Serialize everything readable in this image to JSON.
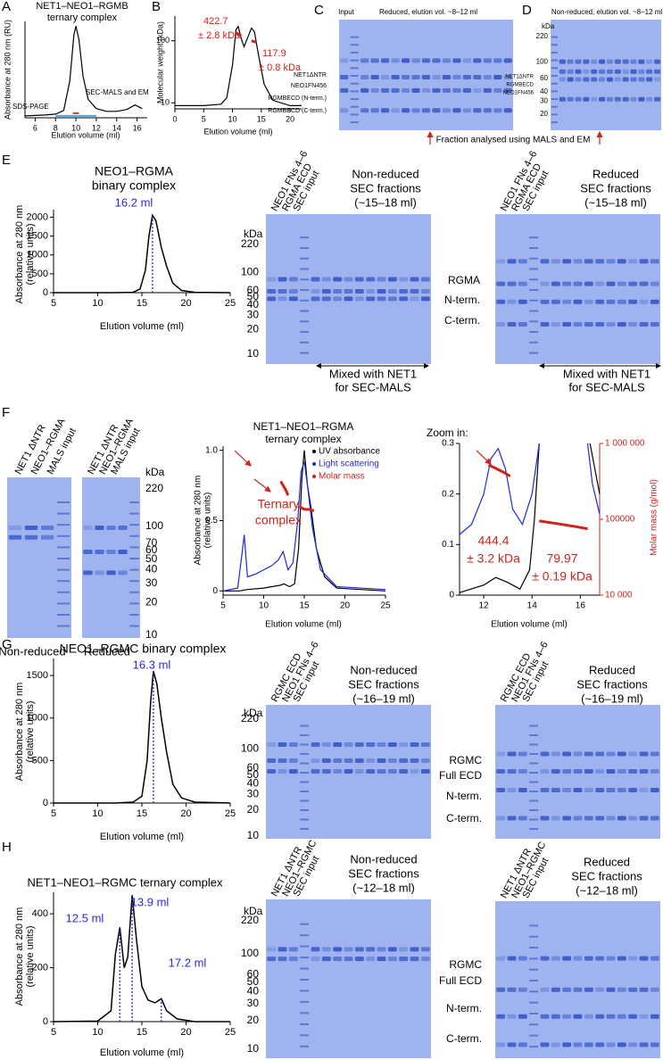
{
  "panel_labels": [
    "A",
    "B",
    "C",
    "D",
    "E",
    "F",
    "G",
    "H"
  ],
  "fraction_note": "Fraction analysed using MALS and EM",
  "chart_data": [
    {
      "type": "line",
      "title": [
        "NET1–NEO1–RGMB",
        "ternary complex"
      ],
      "xlabel": "Elution volume (ml)",
      "ylabel": [
        "Absorbance at 280 nm (RU)"
      ],
      "xlim": [
        5,
        17
      ],
      "ylim": [
        0,
        1.05
      ],
      "xticks": [
        6,
        8,
        10,
        12,
        14,
        16
      ],
      "series": [
        {
          "color": "#000000",
          "x": [
            5,
            7,
            8,
            8.8,
            9.4,
            9.8,
            10,
            10.3,
            10.7,
            11.2,
            12,
            13,
            14,
            15,
            15.8,
            16.5
          ],
          "values": [
            0.02,
            0.03,
            0.04,
            0.08,
            0.4,
            0.9,
            1.0,
            0.85,
            0.45,
            0.2,
            0.1,
            0.07,
            0.07,
            0.09,
            0.14,
            0.1
          ]
        },
        {
          "color": "#3fa9e0",
          "x": [
            8,
            12
          ],
          "values": [
            0.02,
            0.02
          ]
        },
        {
          "color": "#e0392b",
          "x": [
            9.7,
            10.3
          ],
          "values": [
            0.05,
            0.05
          ]
        }
      ],
      "annotations": [
        "SDS-PAGE",
        "SEC-MALS and EM"
      ]
    },
    {
      "type": "line",
      "xlabel": "Elution volume (ml)",
      "ylabel": [
        "Molecular weight (kDa)"
      ],
      "xlim": [
        0,
        22
      ],
      "ylim": [
        8,
        250
      ],
      "ylog": true,
      "xticks": [
        0,
        5,
        10,
        15,
        20
      ],
      "yticks": [
        10,
        100
      ],
      "series": [
        {
          "color": "#000000",
          "x": [
            0,
            5,
            8,
            9,
            10,
            10.6,
            11,
            11.5,
            12,
            12.6,
            13.3,
            13.8,
            14.5,
            15.5,
            17,
            20,
            22
          ],
          "values": [
            9,
            9,
            9.5,
            12,
            40,
            150,
            170,
            110,
            80,
            110,
            160,
            140,
            60,
            20,
            11,
            9,
            9
          ]
        },
        {
          "color": "#d0231c",
          "x": [
            10.6,
            10.9,
            11.2,
            11.5,
            12.5,
            13.3,
            13.6,
            13.9,
            14.2
          ],
          "values": [
            135,
            130,
            125,
            120,
            null,
            100,
            98,
            96,
            94
          ]
        }
      ],
      "annotations": [
        "422.7",
        "± 2.8 kDa",
        "117.9",
        "± 0.8 kDa"
      ]
    },
    {
      "type": "line",
      "title": [
        "NEO1–RGMA",
        "binary complex"
      ],
      "xlabel": "Elution volume (ml)",
      "ylabel": [
        "Absorbance at 280 nm",
        "(relative units)"
      ],
      "xlim": [
        5,
        25
      ],
      "ylim": [
        0,
        2200
      ],
      "xticks": [
        5,
        10,
        15,
        20,
        25
      ],
      "yticks": [
        0,
        500,
        1000,
        1500,
        2000
      ],
      "series": [
        {
          "color": "#000000",
          "x": [
            5,
            12,
            14,
            14.8,
            15.4,
            15.8,
            16.2,
            16.6,
            17.2,
            17.8,
            18.5,
            19.5,
            21,
            25
          ],
          "values": [
            0,
            0,
            10,
            100,
            600,
            1500,
            2050,
            1900,
            1200,
            700,
            250,
            60,
            10,
            0
          ]
        }
      ],
      "markers": [
        {
          "label": "16.2 ml",
          "x": 16.2
        }
      ]
    },
    {
      "type": "line",
      "title": [
        "NET1–NEO1–RGMA",
        "ternary complex"
      ],
      "xlabel": "Elution volume (ml)",
      "ylabel": [
        "Absorbance at 280 nm",
        "(relative units)"
      ],
      "xlim": [
        5,
        25
      ],
      "ylim": [
        -0.03,
        1.03
      ],
      "xticks": [
        5,
        10,
        15,
        20,
        25
      ],
      "yticks": [
        0,
        0.5,
        {
          "value": 1,
          "label": "1.0"
        }
      ],
      "series": [
        {
          "name": "UV absorbance",
          "color": "#000000",
          "x": [
            5,
            7,
            8,
            10,
            11,
            12,
            12.5,
            13.2,
            13.8,
            14.3,
            14.7,
            15,
            15.4,
            15.8,
            16.5,
            17.5,
            19,
            25
          ],
          "values": [
            0,
            0,
            0.01,
            0.02,
            0.03,
            0.04,
            0.05,
            0.03,
            0.05,
            0.3,
            0.8,
            1.0,
            0.75,
            0.6,
            0.3,
            0.1,
            0.02,
            0
          ]
        },
        {
          "name": "Light scattering",
          "color": "#1f2bd6",
          "x": [
            5,
            6.8,
            7.3,
            7.6,
            8,
            9,
            10,
            11,
            11.8,
            12.4,
            13,
            13.6,
            14.2,
            14.6,
            15,
            15.4,
            16,
            17,
            19,
            25
          ],
          "values": [
            0,
            0.02,
            0.25,
            0.4,
            0.1,
            0.12,
            0.15,
            0.18,
            0.22,
            0.28,
            0.15,
            0.2,
            0.5,
            0.85,
            0.92,
            0.75,
            0.45,
            0.15,
            0.03,
            0.01
          ]
        },
        {
          "name": "Molar mass",
          "color": "#d0231c",
          "x": [
            12.1,
            12.4,
            12.7,
            13.0,
            13.7,
            14.4,
            15,
            15.6,
            16.2
          ],
          "values": [
            0.78,
            0.75,
            0.72,
            0.68,
            null,
            0.6,
            0.58,
            0.58,
            0.57
          ]
        }
      ],
      "annotations": [
        "Ternary",
        "complex"
      ]
    },
    {
      "type": "line",
      "title": [
        "Zoom in:"
      ],
      "xlabel": "Elution volume (ml)",
      "y2label": "Molar mass (g/mol)",
      "xlim": [
        11,
        16.8
      ],
      "ylim": [
        0,
        0.3
      ],
      "xticks": [
        12,
        14,
        16
      ],
      "yticks": [
        0,
        0.1,
        0.2,
        0.3
      ],
      "y2lim": [
        10000,
        1000000
      ],
      "y2log": true,
      "y2ticks": [
        {
          "value": 10000,
          "label": "10 000"
        },
        {
          "value": 100000,
          "label": "100000"
        },
        {
          "value": 1000000,
          "label": "1 000 000"
        }
      ],
      "series": [
        {
          "color": "#000000",
          "x": [
            11,
            12,
            12.5,
            13,
            13.5,
            13.9,
            14.1,
            14.3,
            15,
            16.4,
            16.6,
            16.8
          ],
          "values": [
            0.005,
            0.02,
            0.035,
            0.025,
            0.012,
            0.05,
            0.15,
            0.3,
            null,
            0.3,
            0.25,
            0.2
          ]
        },
        {
          "color": "#1f2bd6",
          "x": [
            11,
            11.5,
            12,
            12.3,
            12.6,
            12.9,
            13.2,
            13.6,
            14,
            14.3,
            15,
            16.3,
            16.5,
            16.8
          ],
          "values": [
            0.12,
            0.14,
            0.2,
            0.27,
            0.29,
            0.25,
            0.17,
            0.14,
            0.2,
            0.3,
            null,
            0.3,
            0.22,
            0.16
          ]
        },
        {
          "color": "#d0231c",
          "axis": "y2",
          "x": [
            12.2,
            12.5,
            12.8,
            13.1,
            13.7,
            14.3,
            15,
            15.8,
            16.3
          ],
          "values": [
            520000,
            470000,
            420000,
            370000,
            null,
            95000,
            88000,
            80000,
            75000
          ]
        }
      ],
      "annotations": [
        "444.4",
        "± 3.2 kDa",
        "79.97",
        "± 0.19 kDa"
      ]
    },
    {
      "type": "line",
      "title": [
        "NEO1–RGMC binary complex"
      ],
      "xlabel": "Elution volume (ml)",
      "ylabel": [
        "Absorbance at 280 nm",
        "(relative units)"
      ],
      "xlim": [
        5,
        25
      ],
      "ylim": [
        0,
        1700
      ],
      "xticks": [
        5,
        10,
        15,
        20,
        25
      ],
      "yticks": [
        0,
        500,
        1000,
        1500
      ],
      "series": [
        {
          "color": "#000000",
          "x": [
            5,
            12,
            14,
            15,
            15.6,
            16,
            16.3,
            16.7,
            17.2,
            17.8,
            18.5,
            19.5,
            21,
            25
          ],
          "values": [
            0,
            0,
            10,
            80,
            500,
            1200,
            1550,
            1400,
            1000,
            600,
            220,
            60,
            10,
            0
          ]
        }
      ],
      "markers": [
        {
          "label": "16.3 ml",
          "x": 16.3
        }
      ]
    },
    {
      "type": "line",
      "title": [
        "NET1–NEO1–RGMC ternary complex"
      ],
      "xlabel": "Elution volume (ml)",
      "ylabel": [
        "Absorbance at 280 nm",
        "(relative units)"
      ],
      "xlim": [
        5,
        25
      ],
      "ylim": [
        0,
        480
      ],
      "xticks": [
        5,
        10,
        15,
        20,
        25
      ],
      "yticks": [
        0,
        200,
        400
      ],
      "series": [
        {
          "color": "#000000",
          "x": [
            5,
            10,
            11.5,
            12,
            12.5,
            13,
            13.4,
            13.9,
            14.4,
            15,
            15.7,
            16.5,
            17.2,
            17.8,
            19,
            21,
            25
          ],
          "values": [
            0,
            2,
            40,
            250,
            350,
            200,
            240,
            470,
            300,
            130,
            80,
            70,
            85,
            40,
            10,
            0,
            0
          ]
        }
      ],
      "markers": [
        {
          "label": "12.5 ml",
          "x": 12.5
        },
        {
          "label": "13.9 ml",
          "x": 13.9
        },
        {
          "label": "17.2 ml",
          "x": 17.2
        }
      ]
    }
  ],
  "gels": [
    {
      "header": [
        "Input"
      ],
      "title": [
        "Reduced, elution vol. ~8–12 ml"
      ],
      "labels": [
        "NET1ΔNTR",
        "NEO1FN456",
        "RGMBECD (N-term.)",
        "RGMBECD (C-term.)"
      ]
    },
    {
      "title": [
        "Non-reduced, elution vol. ~8–12 ml"
      ],
      "unit": "kDa",
      "markers": [
        220,
        100,
        60,
        40,
        30,
        20
      ],
      "labels": [
        "NET1ΔNTR",
        "RGMBECD",
        "NEO1FN456"
      ]
    },
    {
      "header": [
        "NEO1 FNs 4–6",
        "RGMA ECD",
        "SEC input"
      ],
      "title": [
        "Non-reduced",
        "SEC fractions",
        "(~15–18 ml)"
      ],
      "unit": "kDa",
      "markers": [
        220,
        100,
        60,
        50,
        40,
        30,
        20,
        10
      ],
      "note": [
        "Mixed with NET1",
        "for SEC-MALS"
      ]
    },
    {
      "header": [
        "NEO1 FNs 4–6",
        "RGMA ECD",
        "SEC input"
      ],
      "title": [
        "Reduced",
        "SEC fractions",
        "(~15–18 ml)"
      ],
      "labels": [
        "RGMA",
        "N-term.",
        "C-term."
      ],
      "note": [
        "Mixed with NET1",
        "for SEC-MALS"
      ]
    },
    {
      "header": [
        "NET1 ΔNTR",
        "NEO1–RGMA",
        "MALS input"
      ],
      "caption": "Non-reduced"
    },
    {
      "header": [
        "NET1 ΔNTR",
        "NEO1–RGMA",
        "MALS input"
      ],
      "caption": "Reduced",
      "unit": "kDa",
      "markers": [
        220,
        100,
        70,
        60,
        50,
        40,
        30,
        20,
        10
      ]
    },
    {
      "header": [
        "RGMC ECD",
        "NEO1 FNs 4–6",
        "SEC input"
      ],
      "title": [
        "Non-reduced",
        "SEC fractions",
        "(~16–19 ml)"
      ],
      "unit": "kDa",
      "markers": [
        220,
        100,
        60,
        50,
        40,
        30,
        20,
        10
      ]
    },
    {
      "header": [
        "RGMC ECD",
        "NEO1 FNs 4–6",
        "SEC input"
      ],
      "title": [
        "Reduced",
        "SEC fractions",
        "(~16–19 ml)"
      ],
      "labels": [
        "RGMC",
        "Full ECD",
        "N-term.",
        "C-term."
      ]
    },
    {
      "header": [
        "NET1 ΔNTR",
        "NEO1–RGMC",
        "SEC input"
      ],
      "title": [
        "Non-reduced",
        "SEC fractions",
        "(~12–18 ml)"
      ],
      "unit": "kDa",
      "markers": [
        220,
        100,
        60,
        50,
        40,
        30,
        20,
        10
      ]
    },
    {
      "header": [
        "NET1 ΔNTR",
        "NEO1–RGMC",
        "SEC input"
      ],
      "title": [
        "Reduced",
        "SEC fractions",
        "(~12–18 ml)"
      ],
      "labels": [
        "RGMC",
        "Full ECD",
        "N-term.",
        "C-term."
      ]
    }
  ]
}
